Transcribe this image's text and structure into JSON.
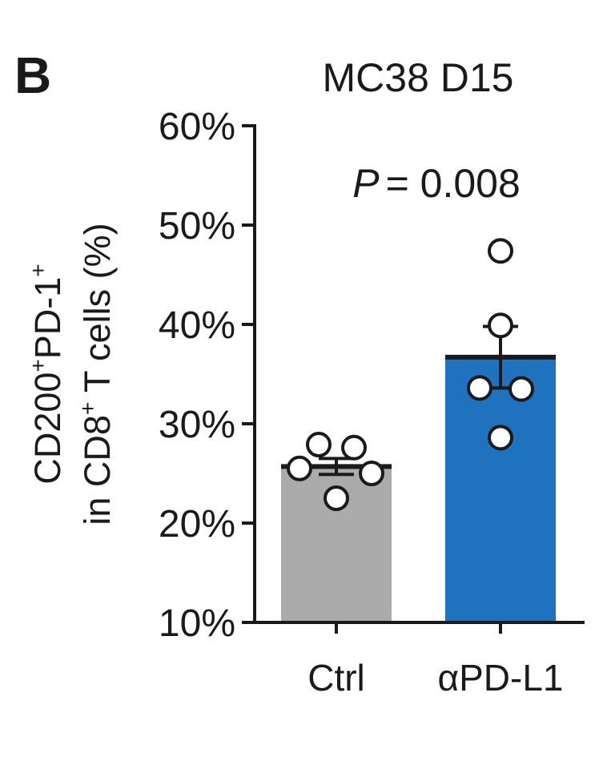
{
  "panel_label": "B",
  "chart_data": {
    "type": "bar",
    "title": "MC38 D15",
    "annotation": "= 0.008",
    "annotation_italic": "P",
    "ylabel": {
      "line1": {
        "base1": "CD200",
        "sup1": "+",
        "base2": "PD-1",
        "sup2": "+"
      },
      "line2": {
        "base1": "in CD8",
        "sup1": "+",
        "base2": " T cells (%)"
      }
    },
    "ylim": [
      10,
      60
    ],
    "yticks": [
      10,
      20,
      30,
      40,
      50,
      60
    ],
    "ytick_labels": [
      "10%",
      "20%",
      "30%",
      "40%",
      "50%",
      "60%"
    ],
    "categories": [
      "Ctrl",
      "αPD-L1"
    ],
    "means": [
      25.7,
      36.7
    ],
    "sem": [
      0.8,
      3.1
    ],
    "bar_colors": [
      "#ababab",
      "#1f72bd"
    ],
    "points": [
      [
        27.9,
        27.6,
        25.5,
        25.0,
        22.5
      ],
      [
        47.4,
        39.9,
        33.6,
        33.5,
        28.6
      ]
    ],
    "grid": false,
    "legend": "none"
  }
}
